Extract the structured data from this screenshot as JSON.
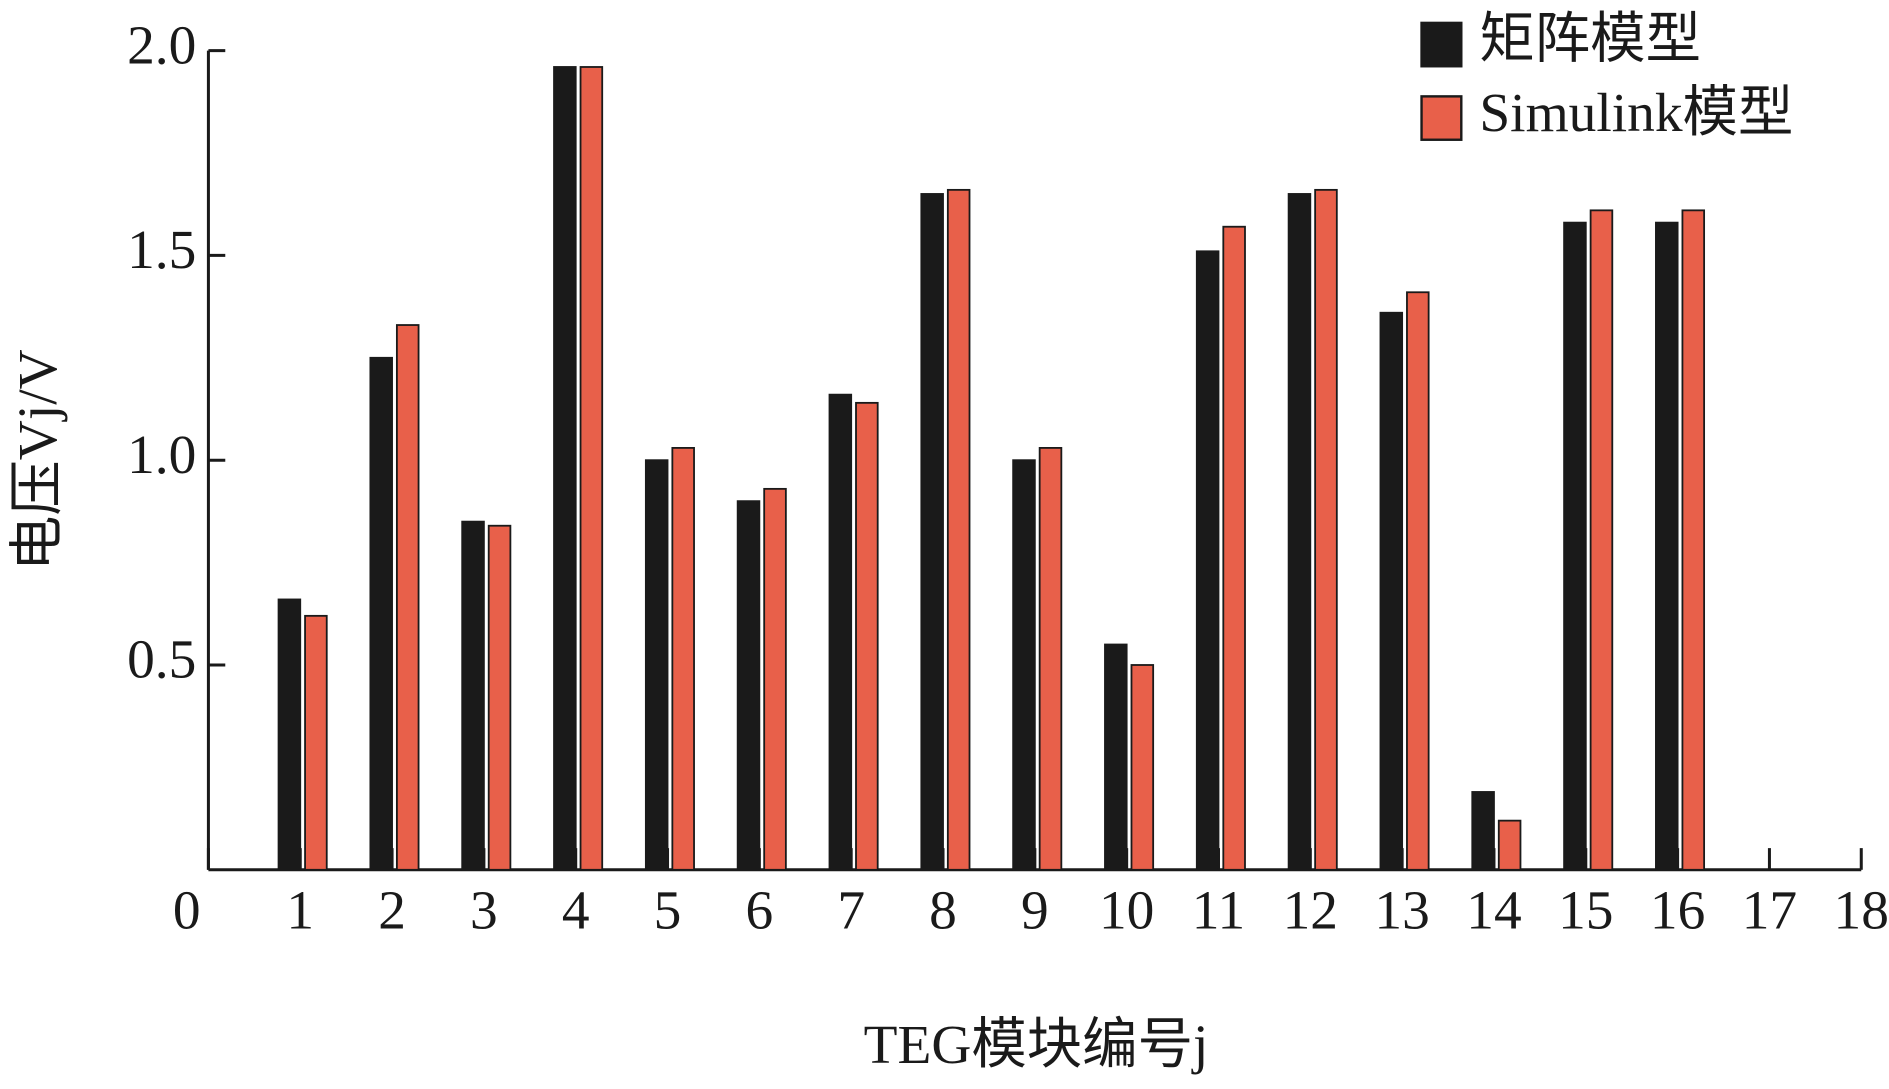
{
  "chart_data": {
    "type": "bar",
    "x": [
      1,
      2,
      3,
      4,
      5,
      6,
      7,
      8,
      9,
      10,
      11,
      12,
      13,
      14,
      15,
      16
    ],
    "series": [
      {
        "name": "矩阵模型",
        "color": "#1a1a1a",
        "values": [
          0.66,
          1.25,
          0.85,
          1.96,
          1.0,
          0.9,
          1.16,
          1.65,
          1.0,
          0.55,
          1.51,
          1.65,
          1.36,
          0.19,
          1.58,
          1.58
        ]
      },
      {
        "name": "Simulink模型",
        "color": "#e8604a",
        "values": [
          0.62,
          1.33,
          0.84,
          1.96,
          1.03,
          0.93,
          1.14,
          1.66,
          1.03,
          0.5,
          1.57,
          1.66,
          1.41,
          0.12,
          1.61,
          1.61
        ]
      }
    ],
    "xlabel": "TEG模块编号j",
    "ylabel": "电压Vj/V",
    "xlim": [
      0,
      18
    ],
    "xticks": [
      0,
      1,
      2,
      3,
      4,
      5,
      6,
      7,
      8,
      9,
      10,
      11,
      12,
      13,
      14,
      15,
      16,
      17,
      18
    ],
    "ylim": [
      0,
      2
    ],
    "yticks": [
      0.5,
      {
        "value": 1,
        "label": "1.0"
      },
      1.5,
      {
        "value": 2,
        "label": "2.0"
      }
    ],
    "legend": "top-right"
  }
}
